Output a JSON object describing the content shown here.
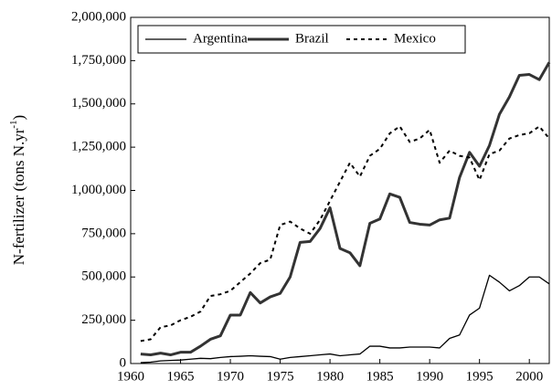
{
  "chart_data": {
    "type": "line",
    "y_label": {
      "text": "N-fertilizer (tons N.yr",
      "superscript": "-1",
      "suffix": ")"
    },
    "x": [
      1961,
      1962,
      1963,
      1964,
      1965,
      1966,
      1967,
      1968,
      1969,
      1970,
      1971,
      1972,
      1973,
      1974,
      1975,
      1976,
      1977,
      1978,
      1979,
      1980,
      1981,
      1982,
      1983,
      1984,
      1985,
      1986,
      1987,
      1988,
      1989,
      1990,
      1991,
      1992,
      1993,
      1994,
      1995,
      1996,
      1997,
      1998,
      1999,
      2000,
      2001,
      2002
    ],
    "series": [
      {
        "name": "Argentina",
        "color": "#000000",
        "width": 1.3,
        "dash": "none",
        "values": [
          5000,
          8000,
          15000,
          18000,
          20000,
          25000,
          30000,
          28000,
          35000,
          40000,
          42000,
          45000,
          42000,
          40000,
          25000,
          35000,
          40000,
          45000,
          50000,
          55000,
          45000,
          50000,
          55000,
          100000,
          100000,
          90000,
          90000,
          95000,
          95000,
          95000,
          90000,
          145000,
          165000,
          280000,
          320000,
          510000,
          470000,
          420000,
          450000,
          500000,
          500000,
          460000
        ]
      },
      {
        "name": "Brazil",
        "color": "#333333",
        "width": 3,
        "dash": "none",
        "values": [
          55000,
          50000,
          60000,
          50000,
          65000,
          65000,
          100000,
          140000,
          160000,
          280000,
          280000,
          410000,
          350000,
          385000,
          405000,
          500000,
          700000,
          705000,
          780000,
          900000,
          665000,
          640000,
          565000,
          810000,
          835000,
          980000,
          960000,
          815000,
          805000,
          800000,
          830000,
          840000,
          1075000,
          1220000,
          1140000,
          1260000,
          1440000,
          1540000,
          1665000,
          1670000,
          1640000,
          1740000
        ]
      },
      {
        "name": "Mexico",
        "color": "#000000",
        "width": 2,
        "dash": "4,4",
        "values": [
          130000,
          140000,
          210000,
          220000,
          250000,
          270000,
          300000,
          390000,
          400000,
          420000,
          470000,
          520000,
          580000,
          600000,
          800000,
          820000,
          780000,
          750000,
          830000,
          940000,
          1050000,
          1160000,
          1080000,
          1200000,
          1240000,
          1330000,
          1370000,
          1280000,
          1300000,
          1350000,
          1160000,
          1230000,
          1200000,
          1190000,
          1060000,
          1210000,
          1230000,
          1300000,
          1320000,
          1330000,
          1370000,
          1300000
        ]
      }
    ],
    "xlim": [
      1960,
      2002
    ],
    "xticks": [
      1960,
      1965,
      1970,
      1975,
      1980,
      1985,
      1990,
      1995,
      2000
    ],
    "ylim": [
      0,
      2000000
    ],
    "yticks": [
      {
        "value": 0,
        "label": "0"
      },
      {
        "value": 250000,
        "label": "250,000"
      },
      {
        "value": 500000,
        "label": "500,000"
      },
      {
        "value": 750000,
        "label": "750,000"
      },
      {
        "value": 1000000,
        "label": "1,000,000"
      },
      {
        "value": 1250000,
        "label": "1,250,000"
      },
      {
        "value": 1500000,
        "label": "1,500,000"
      },
      {
        "value": 1750000,
        "label": "1,750,000"
      },
      {
        "value": 2000000,
        "label": "2,000,000"
      }
    ],
    "legend": "top-left"
  }
}
